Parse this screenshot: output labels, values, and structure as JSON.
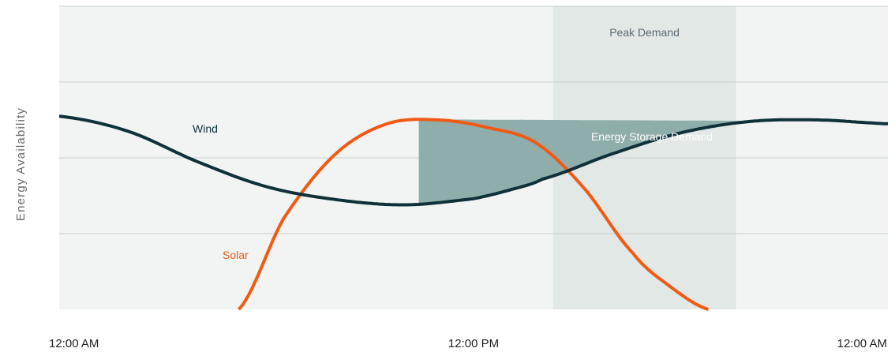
{
  "chart_data": {
    "type": "line",
    "ylabel": "Energy Availability",
    "xlabel": "",
    "x_ticks": [
      "12:00 AM",
      "12:00 PM",
      "12:00 AM"
    ],
    "x_domain_hours": [
      0,
      24
    ],
    "ylim": [
      0,
      4
    ],
    "grid": true,
    "series": [
      {
        "name": "Wind",
        "color": "#10313a",
        "x": [
          0,
          2,
          4,
          6,
          8,
          10,
          12,
          13,
          14,
          16,
          18,
          20,
          22,
          24
        ],
        "values": [
          2.55,
          2.35,
          1.95,
          1.62,
          1.45,
          1.38,
          1.46,
          1.57,
          1.72,
          2.05,
          2.33,
          2.48,
          2.5,
          2.45
        ]
      },
      {
        "name": "Solar",
        "color": "#f05a14",
        "x": [
          5.2,
          6.5,
          8,
          9.5,
          11,
          12.4,
          13.8,
          15.2,
          16.6,
          17.7,
          18.8
        ],
        "values": [
          0,
          1.2,
          2.05,
          2.45,
          2.5,
          2.4,
          2.2,
          1.6,
          0.75,
          0.3,
          0
        ]
      }
    ],
    "bands": [
      {
        "label": "Peak Demand",
        "x_start": 14.3,
        "x_end": 19.6,
        "color": "#e1e8e6"
      }
    ],
    "fill_regions": [
      {
        "label": "Energy Storage Demand",
        "color": "#8fadab"
      }
    ],
    "colors": {
      "plot_background": "#f1f4f3",
      "gridline": "#c9cfcd",
      "solar_label": "#f05a14",
      "wind_label": "#10313a"
    }
  }
}
